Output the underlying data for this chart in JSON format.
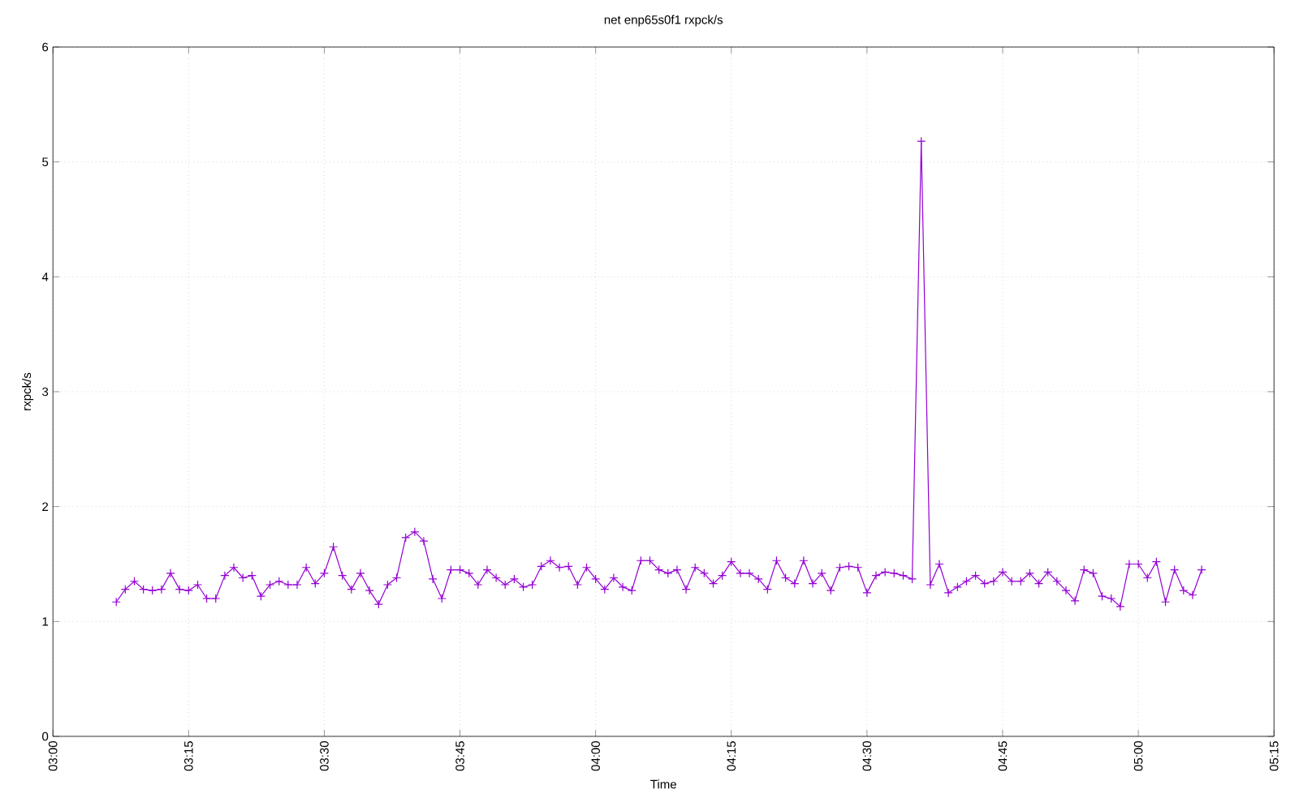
{
  "chart_data": {
    "type": "line",
    "title": "net enp65s0f1 rxpck/s",
    "xlabel": "Time",
    "ylabel": "rxpck/s",
    "x": [
      3.1167,
      3.1333,
      3.15,
      3.1667,
      3.1833,
      3.2,
      3.2167,
      3.2333,
      3.25,
      3.2667,
      3.2833,
      3.3,
      3.3167,
      3.3333,
      3.35,
      3.3667,
      3.3833,
      3.4,
      3.4167,
      3.4333,
      3.45,
      3.4667,
      3.4833,
      3.5,
      3.5167,
      3.5333,
      3.55,
      3.5667,
      3.5833,
      3.6,
      3.6167,
      3.6333,
      3.65,
      3.6667,
      3.6833,
      3.7,
      3.7167,
      3.7333,
      3.75,
      3.7667,
      3.7833,
      3.8,
      3.8167,
      3.8333,
      3.85,
      3.8667,
      3.8833,
      3.9,
      3.9167,
      3.9333,
      3.95,
      3.9667,
      3.9833,
      4.0,
      4.0167,
      4.0333,
      4.05,
      4.0667,
      4.0833,
      4.1,
      4.1167,
      4.1333,
      4.15,
      4.1667,
      4.1833,
      4.2,
      4.2167,
      4.2333,
      4.25,
      4.2667,
      4.2833,
      4.3,
      4.3167,
      4.3333,
      4.35,
      4.3667,
      4.3833,
      4.4,
      4.4167,
      4.4333,
      4.45,
      4.4667,
      4.4833,
      4.5,
      4.5167,
      4.5333,
      4.55,
      4.5667,
      4.5833,
      4.6,
      4.6167,
      4.6333,
      4.65,
      4.6667,
      4.6833,
      4.7,
      4.7167,
      4.7333,
      4.75,
      4.7667,
      4.7833,
      4.8,
      4.8167,
      4.8333,
      4.85,
      4.8667,
      4.8833,
      4.9,
      4.9167,
      4.9333,
      4.95,
      4.9667,
      4.9833,
      5.0,
      5.0167,
      5.0333,
      5.05,
      5.0667,
      5.0833,
      5.1,
      5.1167
    ],
    "series": [
      {
        "color": "#9400d3",
        "values": [
          1.17,
          1.28,
          1.35,
          1.28,
          1.27,
          1.28,
          1.42,
          1.28,
          1.27,
          1.32,
          1.2,
          1.2,
          1.4,
          1.47,
          1.38,
          1.4,
          1.22,
          1.32,
          1.35,
          1.32,
          1.32,
          1.47,
          1.33,
          1.42,
          1.65,
          1.4,
          1.28,
          1.42,
          1.27,
          1.15,
          1.32,
          1.38,
          1.73,
          1.78,
          1.7,
          1.37,
          1.2,
          1.45,
          1.45,
          1.42,
          1.32,
          1.45,
          1.38,
          1.32,
          1.37,
          1.3,
          1.32,
          1.48,
          1.53,
          1.47,
          1.48,
          1.32,
          1.47,
          1.37,
          1.28,
          1.38,
          1.3,
          1.27,
          1.53,
          1.53,
          1.45,
          1.42,
          1.45,
          1.28,
          1.47,
          1.42,
          1.33,
          1.4,
          1.52,
          1.42,
          1.42,
          1.37,
          1.28,
          1.53,
          1.38,
          1.33,
          1.53,
          1.33,
          1.42,
          1.27,
          1.47,
          1.48,
          1.47,
          1.25,
          1.4,
          1.43,
          1.42,
          1.4,
          1.37,
          5.18,
          1.32,
          1.5,
          1.25,
          1.3,
          1.35,
          1.4,
          1.33,
          1.35,
          1.43,
          1.35,
          1.35,
          1.42,
          1.33,
          1.43,
          1.35,
          1.27,
          1.18,
          1.45,
          1.42,
          1.22,
          1.2,
          1.13,
          1.5,
          1.5,
          1.38,
          1.52,
          1.17,
          1.45,
          1.27,
          1.23,
          1.45
        ]
      }
    ],
    "xlim": [
      3.0,
      5.25
    ],
    "xticks": [
      {
        "value": 3.0,
        "label": "03:00"
      },
      {
        "value": 3.25,
        "label": "03:15"
      },
      {
        "value": 3.5,
        "label": "03:30"
      },
      {
        "value": 3.75,
        "label": "03:45"
      },
      {
        "value": 4.0,
        "label": "04:00"
      },
      {
        "value": 4.25,
        "label": "04:15"
      },
      {
        "value": 4.5,
        "label": "04:30"
      },
      {
        "value": 4.75,
        "label": "04:45"
      },
      {
        "value": 5.0,
        "label": "05:00"
      },
      {
        "value": 5.25,
        "label": "05:15"
      }
    ],
    "ylim": [
      0,
      6
    ],
    "yticks": [
      0,
      1,
      2,
      3,
      4,
      5,
      6
    ],
    "grid": true,
    "marker": "cross",
    "line_style": "solid"
  }
}
